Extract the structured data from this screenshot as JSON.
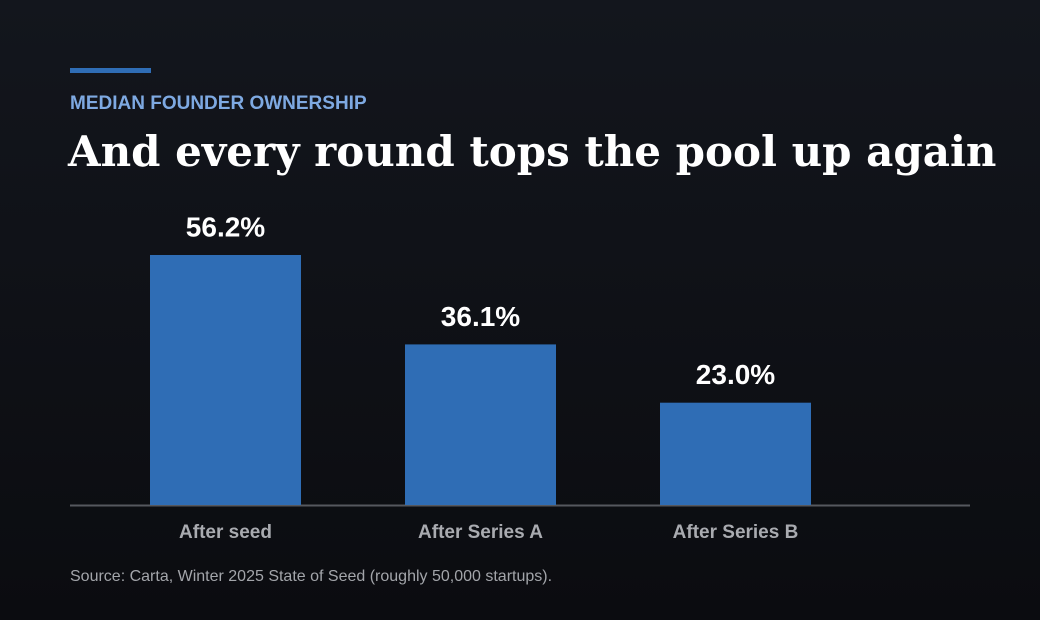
{
  "chart_data": {
    "type": "bar",
    "kicker": "MEDIAN FOUNDER OWNERSHIP",
    "title": "And every round tops the pool up again",
    "categories": [
      "After seed",
      "After Series A",
      "After Series B"
    ],
    "values": [
      56.2,
      36.1,
      23.0
    ],
    "value_labels": [
      "56.2%",
      "36.1%",
      "23.0%"
    ],
    "color": "#2f6db5",
    "source": "Source: Carta, Winter 2025 State of Seed (roughly 50,000 startups)."
  }
}
